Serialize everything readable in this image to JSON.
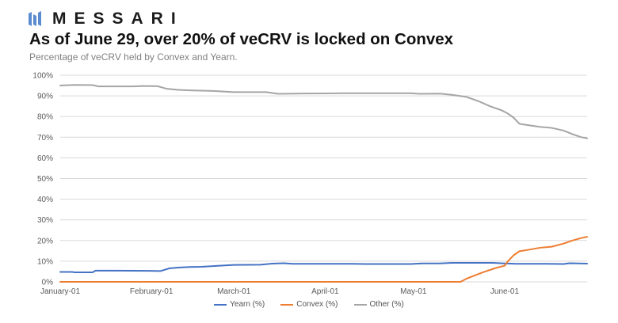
{
  "brand": {
    "name": "MESSARI",
    "logo_icon": "messari-logo-icon",
    "logo_color": "#5b8bd0"
  },
  "header": {
    "title": "As of June 29, over 20% of veCRV is locked on Convex",
    "subtitle": "Percentage of veCRV held by Convex and Yearn."
  },
  "chart_data": {
    "type": "line",
    "title": "As of June 29, over 20% of veCRV is locked on Convex",
    "subtitle": "Percentage of veCRV held by Convex and Yearn.",
    "xlabel": "",
    "ylabel": "",
    "x_range": [
      "2021-01-01",
      "2021-06-29"
    ],
    "x_ticks": [
      {
        "label": "January-01",
        "date": "2021-01-01"
      },
      {
        "label": "February-01",
        "date": "2021-02-01"
      },
      {
        "label": "March-01",
        "date": "2021-03-01"
      },
      {
        "label": "April-01",
        "date": "2021-04-01"
      },
      {
        "label": "May-01",
        "date": "2021-05-01"
      },
      {
        "label": "June-01",
        "date": "2021-06-01"
      }
    ],
    "ylim": [
      0,
      100
    ],
    "y_ticks": [
      {
        "label": "0%",
        "value": 0
      },
      {
        "label": "10%",
        "value": 10
      },
      {
        "label": "20%",
        "value": 20
      },
      {
        "label": "30%",
        "value": 30
      },
      {
        "label": "40%",
        "value": 40
      },
      {
        "label": "50%",
        "value": 50
      },
      {
        "label": "60%",
        "value": 60
      },
      {
        "label": "70%",
        "value": 70
      },
      {
        "label": "80%",
        "value": 80
      },
      {
        "label": "90%",
        "value": 90
      },
      {
        "label": "100%",
        "value": 100
      }
    ],
    "grid": true,
    "legend_position": "bottom",
    "series": [
      {
        "name": "Yearn (%)",
        "color": "#4472c4",
        "points": [
          [
            "2021-01-01",
            4.8
          ],
          [
            "2021-01-05",
            4.8
          ],
          [
            "2021-01-06",
            4.6
          ],
          [
            "2021-01-12",
            4.6
          ],
          [
            "2021-01-13",
            5.4
          ],
          [
            "2021-01-20",
            5.4
          ],
          [
            "2021-01-31",
            5.3
          ],
          [
            "2021-02-04",
            5.2
          ],
          [
            "2021-02-07",
            6.5
          ],
          [
            "2021-02-10",
            6.9
          ],
          [
            "2021-02-14",
            7.2
          ],
          [
            "2021-02-18",
            7.3
          ],
          [
            "2021-02-23",
            7.7
          ],
          [
            "2021-03-01",
            8.2
          ],
          [
            "2021-03-10",
            8.3
          ],
          [
            "2021-03-14",
            8.8
          ],
          [
            "2021-03-18",
            9.0
          ],
          [
            "2021-03-21",
            8.7
          ],
          [
            "2021-04-01",
            8.7
          ],
          [
            "2021-04-10",
            8.7
          ],
          [
            "2021-04-15",
            8.6
          ],
          [
            "2021-04-30",
            8.6
          ],
          [
            "2021-05-04",
            8.9
          ],
          [
            "2021-05-10",
            8.9
          ],
          [
            "2021-05-14",
            9.2
          ],
          [
            "2021-05-28",
            9.2
          ],
          [
            "2021-06-01",
            8.9
          ],
          [
            "2021-06-05",
            8.7
          ],
          [
            "2021-06-15",
            8.7
          ],
          [
            "2021-06-21",
            8.6
          ],
          [
            "2021-06-23",
            9.0
          ],
          [
            "2021-06-29",
            8.8
          ]
        ]
      },
      {
        "name": "Convex (%)",
        "color": "#ed7d31",
        "points": [
          [
            "2021-01-01",
            0
          ],
          [
            "2021-05-17",
            0
          ],
          [
            "2021-05-19",
            1.5
          ],
          [
            "2021-05-22",
            3.2
          ],
          [
            "2021-05-25",
            4.8
          ],
          [
            "2021-05-29",
            6.7
          ],
          [
            "2021-06-01",
            7.8
          ],
          [
            "2021-06-02",
            9.8
          ],
          [
            "2021-06-04",
            12.8
          ],
          [
            "2021-06-06",
            14.8
          ],
          [
            "2021-06-09",
            15.5
          ],
          [
            "2021-06-13",
            16.5
          ],
          [
            "2021-06-17",
            17.0
          ],
          [
            "2021-06-21",
            18.5
          ],
          [
            "2021-06-24",
            20.0
          ],
          [
            "2021-06-27",
            21.2
          ],
          [
            "2021-06-29",
            21.8
          ]
        ]
      },
      {
        "name": "Other (%)",
        "color": "#a5a5a5",
        "points": [
          [
            "2021-01-01",
            95.0
          ],
          [
            "2021-01-06",
            95.3
          ],
          [
            "2021-01-12",
            95.2
          ],
          [
            "2021-01-14",
            94.6
          ],
          [
            "2021-01-26",
            94.6
          ],
          [
            "2021-01-29",
            94.8
          ],
          [
            "2021-02-03",
            94.7
          ],
          [
            "2021-02-06",
            93.5
          ],
          [
            "2021-02-10",
            92.9
          ],
          [
            "2021-02-15",
            92.6
          ],
          [
            "2021-02-22",
            92.4
          ],
          [
            "2021-03-01",
            91.8
          ],
          [
            "2021-03-12",
            91.8
          ],
          [
            "2021-03-16",
            91.0
          ],
          [
            "2021-03-22",
            91.1
          ],
          [
            "2021-04-01",
            91.2
          ],
          [
            "2021-04-08",
            91.3
          ],
          [
            "2021-04-30",
            91.3
          ],
          [
            "2021-05-03",
            91.0
          ],
          [
            "2021-05-10",
            91.1
          ],
          [
            "2021-05-14",
            90.5
          ],
          [
            "2021-05-19",
            89.5
          ],
          [
            "2021-05-23",
            87.5
          ],
          [
            "2021-05-27",
            85.0
          ],
          [
            "2021-05-31",
            83.0
          ],
          [
            "2021-06-02",
            81.5
          ],
          [
            "2021-06-04",
            79.5
          ],
          [
            "2021-06-06",
            76.5
          ],
          [
            "2021-06-09",
            75.8
          ],
          [
            "2021-06-13",
            75.0
          ],
          [
            "2021-06-17",
            74.5
          ],
          [
            "2021-06-21",
            73.2
          ],
          [
            "2021-06-24",
            71.5
          ],
          [
            "2021-06-27",
            70.0
          ],
          [
            "2021-06-29",
            69.5
          ]
        ]
      }
    ]
  },
  "colors": {
    "grid": "#d9d9d9",
    "axis_text": "#595959"
  }
}
